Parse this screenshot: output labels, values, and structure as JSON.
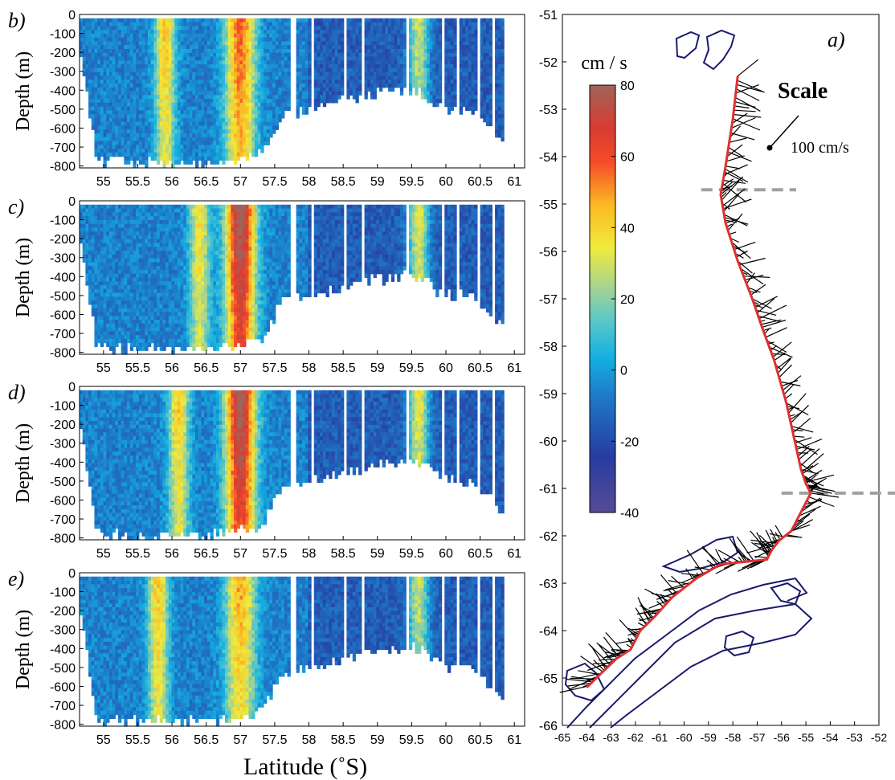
{
  "chart_data": [
    {
      "type": "heatmap",
      "panel_label": "b)",
      "xlabel": "Latitude (˚S)",
      "ylabel": "Depth (m)",
      "xlim": [
        54.65,
        61.15
      ],
      "ylim": [
        -810,
        0
      ],
      "xticks": [
        "55",
        "55.5",
        "56",
        "56.5",
        "57",
        "57.5",
        "58",
        "58.5",
        "59",
        "59.5",
        "60",
        "60.5",
        "61"
      ],
      "yticks": [
        "0",
        "-100",
        "-200",
        "-300",
        "-400",
        "-500",
        "-600",
        "-700",
        "-800"
      ],
      "colorbar_range": [
        -40,
        80
      ],
      "jet_cores": [
        {
          "latitude": 55.9,
          "max_speed": 40
        },
        {
          "latitude": 57.0,
          "max_speed": 55
        },
        {
          "latitude": 59.6,
          "max_speed": 35
        }
      ]
    },
    {
      "type": "heatmap",
      "panel_label": "c)",
      "xlabel": "Latitude (˚S)",
      "ylabel": "Depth (m)",
      "xlim": [
        54.65,
        61.15
      ],
      "ylim": [
        -810,
        0
      ],
      "xticks": [
        "55",
        "55.5",
        "56",
        "56.5",
        "57",
        "57.5",
        "58",
        "58.5",
        "59",
        "59.5",
        "60",
        "60.5",
        "61"
      ],
      "yticks": [
        "0",
        "-100",
        "-200",
        "-300",
        "-400",
        "-500",
        "-600",
        "-700",
        "-800"
      ],
      "colorbar_range": [
        -40,
        80
      ],
      "jet_cores": [
        {
          "latitude": 56.4,
          "max_speed": 35
        },
        {
          "latitude": 57.0,
          "max_speed": 80
        },
        {
          "latitude": 59.6,
          "max_speed": 40
        }
      ]
    },
    {
      "type": "heatmap",
      "panel_label": "d)",
      "xlabel": "Latitude (˚S)",
      "ylabel": "Depth (m)",
      "xlim": [
        54.65,
        61.15
      ],
      "ylim": [
        -810,
        0
      ],
      "xticks": [
        "55",
        "55.5",
        "56",
        "56.5",
        "57",
        "57.5",
        "58",
        "58.5",
        "59",
        "59.5",
        "60",
        "60.5",
        "61"
      ],
      "yticks": [
        "0",
        "-100",
        "-200",
        "-300",
        "-400",
        "-500",
        "-600",
        "-700",
        "-800"
      ],
      "colorbar_range": [
        -40,
        80
      ],
      "jet_cores": [
        {
          "latitude": 56.1,
          "max_speed": 40
        },
        {
          "latitude": 57.0,
          "max_speed": 80
        },
        {
          "latitude": 59.6,
          "max_speed": 40
        }
      ]
    },
    {
      "type": "heatmap",
      "panel_label": "e)",
      "xlabel": "Latitude (˚S)",
      "ylabel": "Depth (m)",
      "xlim": [
        54.65,
        61.15
      ],
      "ylim": [
        -810,
        0
      ],
      "xticks": [
        "55",
        "55.5",
        "56",
        "56.5",
        "57",
        "57.5",
        "58",
        "58.5",
        "59",
        "59.5",
        "60",
        "60.5",
        "61"
      ],
      "yticks": [
        "0",
        "-100",
        "-200",
        "-300",
        "-400",
        "-500",
        "-600",
        "-700",
        "-800"
      ],
      "colorbar_range": [
        -40,
        80
      ],
      "jet_cores": [
        {
          "latitude": 55.8,
          "max_speed": 40
        },
        {
          "latitude": 57.0,
          "max_speed": 45
        },
        {
          "latitude": 59.6,
          "max_speed": 35
        }
      ]
    },
    {
      "type": "line",
      "panel_label": "a)",
      "xlim": [
        -65,
        -52
      ],
      "ylim": [
        -66,
        -51
      ],
      "xticks": [
        "-65",
        "-64",
        "-63",
        "-62",
        "-61",
        "-60",
        "-59",
        "-58",
        "-57",
        "-56",
        "-55",
        "-54",
        "-53",
        "-52"
      ],
      "yticks": [
        "-51",
        "-52",
        "-53",
        "-54",
        "-55",
        "-56",
        "-57",
        "-58",
        "-59",
        "-60",
        "-61",
        "-62",
        "-63",
        "-64",
        "-65",
        "-66"
      ],
      "scale_title": "Scale",
      "scale_label": "100 cm/s",
      "colorbar_title": "cm / s",
      "colorbar_ticks": [
        "80",
        "60",
        "40",
        "20",
        "0",
        "-20",
        "-40"
      ],
      "colorbar_range": [
        -40,
        80
      ],
      "ship_track": {
        "x": [
          -57.8,
          -58.0,
          -58.3,
          -58.5,
          -58.3,
          -57.8,
          -57.2,
          -56.8,
          -56.3,
          -55.8,
          -55.5,
          -55.2,
          -55.0,
          -54.8,
          -55.6,
          -56.1,
          -56.4,
          -56.6,
          -57.5,
          -58.5,
          -59.5,
          -60.5,
          -61.2,
          -61.8,
          -62.2,
          -62.8,
          -63.4,
          -64.0
        ],
        "y": [
          -52.3,
          -53.2,
          -54.2,
          -54.8,
          -55.4,
          -56.2,
          -57.0,
          -57.6,
          -58.3,
          -59.2,
          -59.9,
          -60.6,
          -60.9,
          -61.1,
          -61.9,
          -62.1,
          -62.3,
          -62.5,
          -62.55,
          -62.6,
          -62.9,
          -63.3,
          -63.7,
          -64.0,
          -64.4,
          -64.6,
          -64.9,
          -65.2
        ]
      },
      "boundary_lines": [
        {
          "latitude": -54.7,
          "x_range": [
            -59.3,
            -55.4
          ]
        },
        {
          "latitude": -61.1,
          "x_range": [
            -56.0,
            -51.3
          ]
        }
      ]
    }
  ],
  "ui": {
    "latitude_label": "Latitude (˚S)"
  }
}
